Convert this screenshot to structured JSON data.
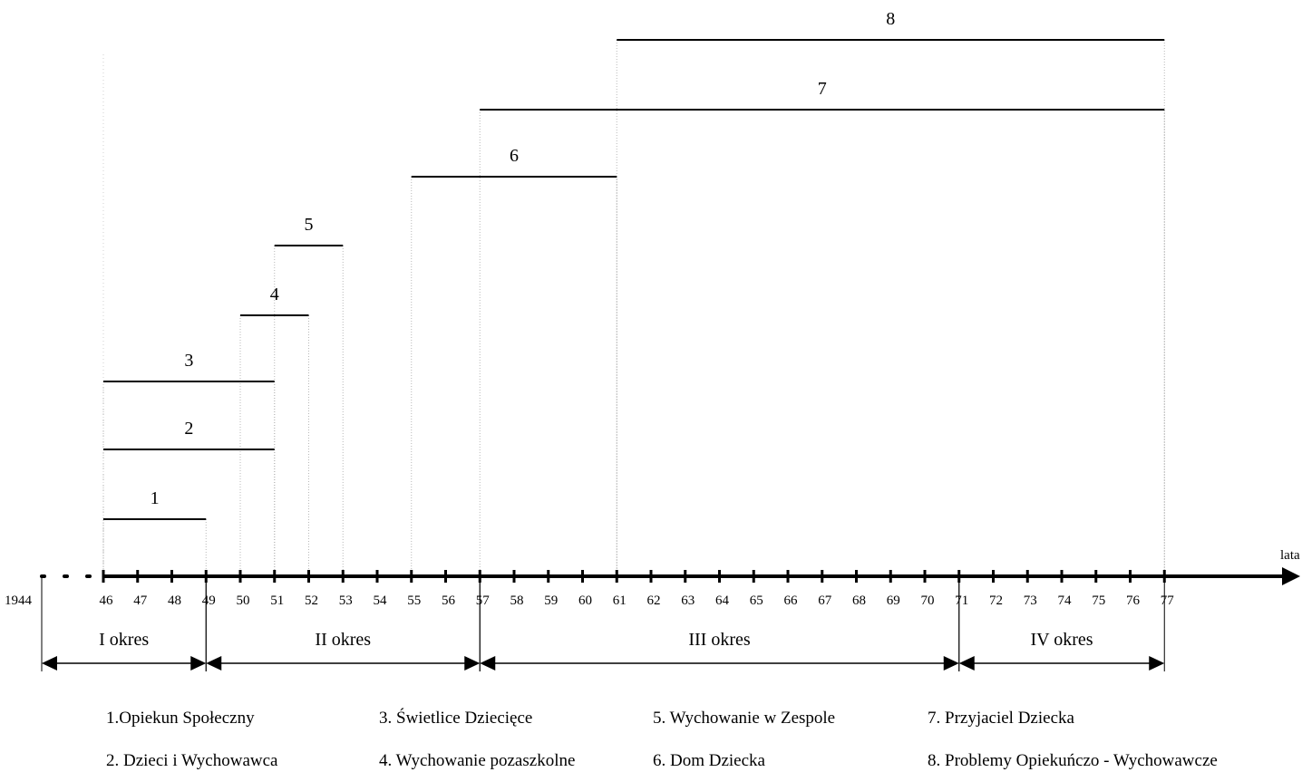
{
  "axis": {
    "start_label": "1944",
    "unit_label": "lata",
    "year_labels": [
      "46",
      "47",
      "48",
      "49",
      "50",
      "51",
      "52",
      "53",
      "54",
      "55",
      "56",
      "57",
      "58",
      "59",
      "60",
      "61",
      "62",
      "63",
      "64",
      "65",
      "66",
      "67",
      "68",
      "69",
      "70",
      "71",
      "72",
      "73",
      "74",
      "75",
      "76",
      "77"
    ]
  },
  "bars": [
    {
      "label": "1",
      "start": 46,
      "end": 49
    },
    {
      "label": "2",
      "start": 46,
      "end": 51
    },
    {
      "label": "3",
      "start": 46,
      "end": 51
    },
    {
      "label": "4",
      "start": 50,
      "end": 52
    },
    {
      "label": "5",
      "start": 51,
      "end": 53
    },
    {
      "label": "6",
      "start": 55,
      "end": 61
    },
    {
      "label": "7",
      "start": 57,
      "end": 77
    },
    {
      "label": "8",
      "start": 61,
      "end": 77
    }
  ],
  "periods": [
    {
      "label": "I okres",
      "from": 44,
      "to": 49
    },
    {
      "label": "II okres",
      "from": 49,
      "to": 57
    },
    {
      "label": "III okres",
      "from": 57,
      "to": 71
    },
    {
      "label": "IV okres",
      "from": 71,
      "to": 77
    }
  ],
  "legend": [
    {
      "text": "1.Opiekun Społeczny"
    },
    {
      "text": "2. Dzieci i Wychowawca"
    },
    {
      "text": "3. Świetlice Dziecięce"
    },
    {
      "text": "4. Wychowanie pozaszkolne"
    },
    {
      "text": "5. Wychowanie w Zespole"
    },
    {
      "text": "6. Dom Dziecka"
    },
    {
      "text": "7. Przyjaciel Dziecka"
    },
    {
      "text": "8. Problemy Opiekuńczo - Wychowawcze"
    }
  ]
}
